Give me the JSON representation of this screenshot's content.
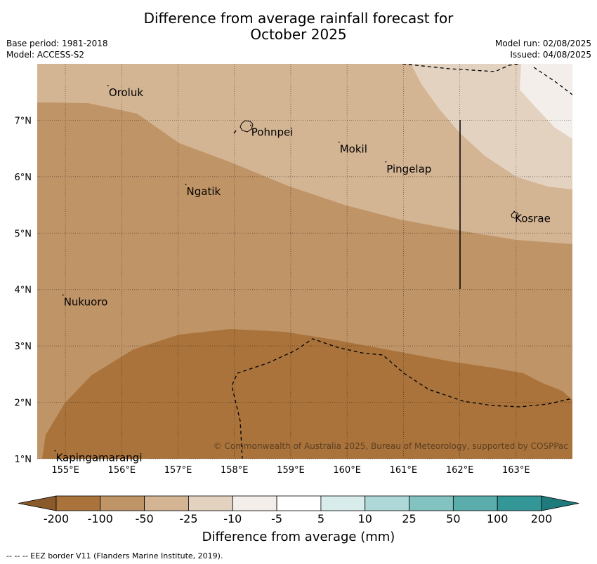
{
  "title": {
    "line1": "Difference from average rainfall forecast for",
    "line2": "October 2025"
  },
  "meta": {
    "base_period": "Base period: 1981-2018",
    "model": "Model: ACCESS-S2",
    "model_run": "Model run: 02/08/2025",
    "issued": "Issued: 04/08/2025"
  },
  "map": {
    "lon_range": [
      154.5,
      164.0
    ],
    "lat_range": [
      1.0,
      8.0
    ],
    "lon_ticks": [
      "155°E",
      "156°E",
      "157°E",
      "158°E",
      "159°E",
      "160°E",
      "161°E",
      "162°E",
      "163°E"
    ],
    "lat_ticks": [
      "1°N",
      "2°N",
      "3°N",
      "4°N",
      "5°N",
      "6°N",
      "7°N"
    ],
    "places": [
      {
        "name": "Oroluk",
        "lon": 155.77,
        "lat": 7.55
      },
      {
        "name": "Pohnpei",
        "lon": 158.3,
        "lat": 6.85
      },
      {
        "name": "Mokil",
        "lon": 159.87,
        "lat": 6.55
      },
      {
        "name": "Pingelap",
        "lon": 160.7,
        "lat": 6.2
      },
      {
        "name": "Ngatik",
        "lon": 157.15,
        "lat": 5.8
      },
      {
        "name": "Kosrae",
        "lon": 162.98,
        "lat": 5.32
      },
      {
        "name": "Nukuoro",
        "lon": 154.97,
        "lat": 3.84
      },
      {
        "name": "Kapingamarangi",
        "lon": 154.83,
        "lat": 1.08
      }
    ],
    "copyright": "© Commonwealth of Australia 2025, Bureau of Meteorology, supported by COSPPac"
  },
  "colorbar": {
    "labels": [
      "-200",
      "-100",
      "-50",
      "-25",
      "-10",
      "-5",
      "5",
      "10",
      "25",
      "50",
      "100",
      "200"
    ],
    "colors": [
      "#aa733b",
      "#bf9466",
      "#d3b493",
      "#e4d2c0",
      "#f3eeea",
      "#ffffff",
      "#d8ecec",
      "#afd8d8",
      "#82c3c2",
      "#5aadab",
      "#339797"
    ],
    "title": "Difference from average (mm)"
  },
  "footer": "--  --  -- EEZ border V11 (Flanders Marine Institute, 2019)."
}
